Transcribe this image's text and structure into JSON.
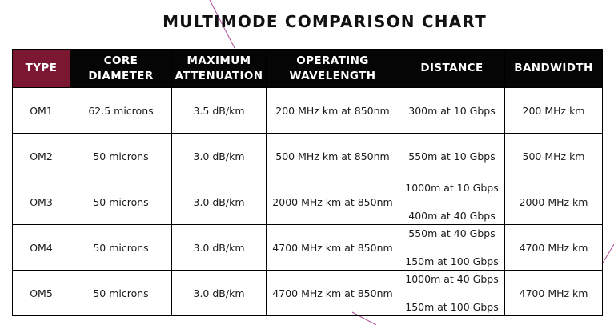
{
  "title": "MULTIMODE COMPARISON CHART",
  "colors": {
    "type_header_bg": "#7b1730",
    "header_bg": "#050505",
    "decorative_line": "#b04d9b"
  },
  "headers": {
    "type": "TYPE",
    "core_diameter": "CORE DIAMETER",
    "max_attenuation_line1": "MAXIMUM",
    "max_attenuation_line2": "ATTENUATION",
    "operating_wavelength_line1": "OPERATING",
    "operating_wavelength_line2": "WAVELENGTH",
    "distance": "DISTANCE",
    "bandwidth": "BANDWIDTH"
  },
  "rows": [
    {
      "type": "OM1",
      "core_diameter": "62.5 microns",
      "max_attenuation": "3.5 dB/km",
      "operating_wavelength": "200 MHz km at 850nm",
      "distance": [
        "300m at 10 Gbps"
      ],
      "bandwidth": "200 MHz km"
    },
    {
      "type": "OM2",
      "core_diameter": "50 microns",
      "max_attenuation": "3.0 dB/km",
      "operating_wavelength": "500 MHz km at 850nm",
      "distance": [
        "550m at 10 Gbps"
      ],
      "bandwidth": "500 MHz km"
    },
    {
      "type": "OM3",
      "core_diameter": "50 microns",
      "max_attenuation": "3.0 dB/km",
      "operating_wavelength": "2000 MHz km at 850nm",
      "distance": [
        "1000m at 10 Gbps",
        "400m at 40 Gbps"
      ],
      "bandwidth": "2000 MHz km"
    },
    {
      "type": "OM4",
      "core_diameter": "50 microns",
      "max_attenuation": "3.0 dB/km",
      "operating_wavelength": "4700 MHz km at 850nm",
      "distance": [
        "550m at 40 Gbps",
        "150m at 100 Gbps"
      ],
      "bandwidth": "4700 MHz km"
    },
    {
      "type": "OM5",
      "core_diameter": "50 microns",
      "max_attenuation": "3.0 dB/km",
      "operating_wavelength": "4700 MHz km at 850nm",
      "distance": [
        "1000m at 40 Gbps",
        "150m at 100 Gbps"
      ],
      "bandwidth": "4700 MHz km"
    }
  ]
}
